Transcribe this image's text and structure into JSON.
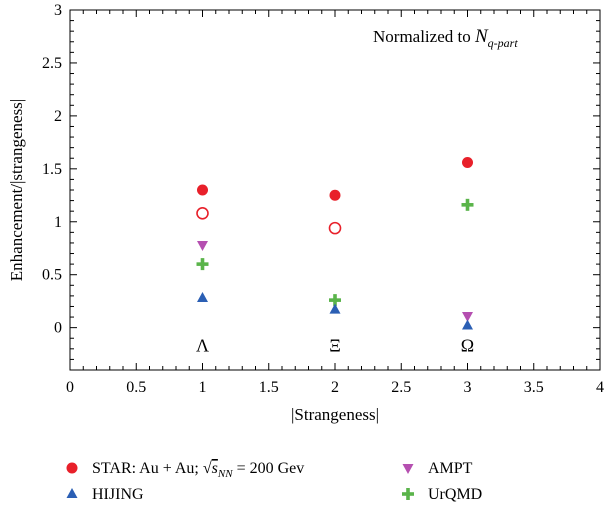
{
  "chart_data": {
    "type": "scatter",
    "xlabel": "|Strangeness|",
    "ylabel": "Enhancement/|strangeness|",
    "xlim": [
      0,
      4
    ],
    "ylim": [
      -0.4,
      3
    ],
    "x_ticks": [
      0,
      0.5,
      1,
      1.5,
      2,
      2.5,
      3,
      3.5,
      4
    ],
    "x_tick_labels": [
      "0",
      "0.5",
      "1",
      "1.5",
      "2",
      "2.5",
      "3",
      "3.5",
      "4"
    ],
    "y_ticks": [
      0,
      0.5,
      1,
      1.5,
      2,
      2.5,
      3
    ],
    "y_tick_labels": [
      "0",
      "0.5",
      "1",
      "1.5",
      "2",
      "2.5",
      "3"
    ],
    "grid": false,
    "legend_position": "bottom",
    "annotation": {
      "text": "Normalized to ",
      "symbol": "N",
      "subscript": "q-part"
    },
    "particle_labels": [
      {
        "x": 1,
        "y": -0.15,
        "text": "Λ"
      },
      {
        "x": 2,
        "y": -0.15,
        "text": "Ξ"
      },
      {
        "x": 3,
        "y": -0.15,
        "text": "Ω"
      }
    ],
    "series": [
      {
        "name": "STAR: Au + Au; √sNN = 200 Gev",
        "marker": "filled-circle",
        "color": "#e8202a",
        "x": [
          1,
          2,
          3
        ],
        "y": [
          1.3,
          1.25,
          1.56
        ]
      },
      {
        "name": "",
        "marker": "open-circle",
        "color": "#e8202a",
        "x": [
          1,
          2
        ],
        "y": [
          1.08,
          0.94
        ]
      },
      {
        "name": "AMPT",
        "marker": "triangle-down",
        "color": "#b54fb0",
        "x": [
          1,
          3
        ],
        "y": [
          0.78,
          0.11
        ]
      },
      {
        "name": "UrQMD",
        "marker": "plus",
        "color": "#5ab44a",
        "x": [
          1,
          2,
          3
        ],
        "y": [
          0.6,
          0.26,
          1.16
        ]
      },
      {
        "name": "HIJING",
        "marker": "triangle-up",
        "color": "#2b5fb4",
        "x": [
          1,
          2,
          3
        ],
        "y": [
          0.28,
          0.17,
          0.02
        ]
      }
    ],
    "legend": [
      {
        "label_prefix": "STAR: Au + Au; ",
        "sqrt_sym": "√",
        "s_letter": "s",
        "s_sub": "NN",
        "label_suffix": " = 200 Gev",
        "marker": "filled-circle",
        "color": "#e8202a"
      },
      {
        "label": "AMPT",
        "marker": "triangle-down",
        "color": "#b54fb0"
      },
      {
        "label": "HIJING",
        "marker": "triangle-up",
        "color": "#2b5fb4"
      },
      {
        "label": "UrQMD",
        "marker": "plus",
        "color": "#5ab44a"
      }
    ]
  }
}
